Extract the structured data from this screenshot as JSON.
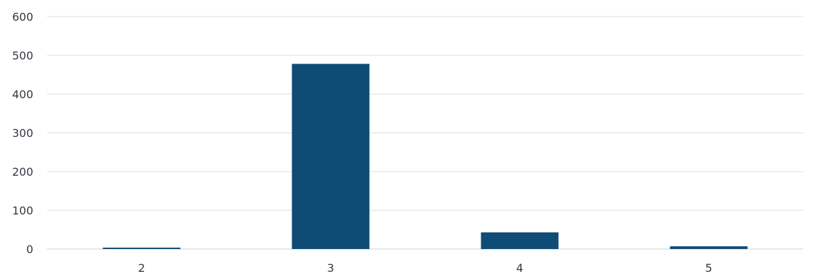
{
  "chart_data": {
    "type": "bar",
    "categories": [
      "2",
      "3",
      "4",
      "5"
    ],
    "values": [
      3,
      478,
      43,
      7
    ],
    "title": "",
    "xlabel": "",
    "ylabel": "",
    "ylim": [
      0,
      600
    ],
    "yticks": [
      "0",
      "100",
      "200",
      "300",
      "400",
      "500",
      "600"
    ],
    "grid": true,
    "legend": "none",
    "bar_color": "#0f4c75",
    "grid_color": "#d9dde2"
  }
}
